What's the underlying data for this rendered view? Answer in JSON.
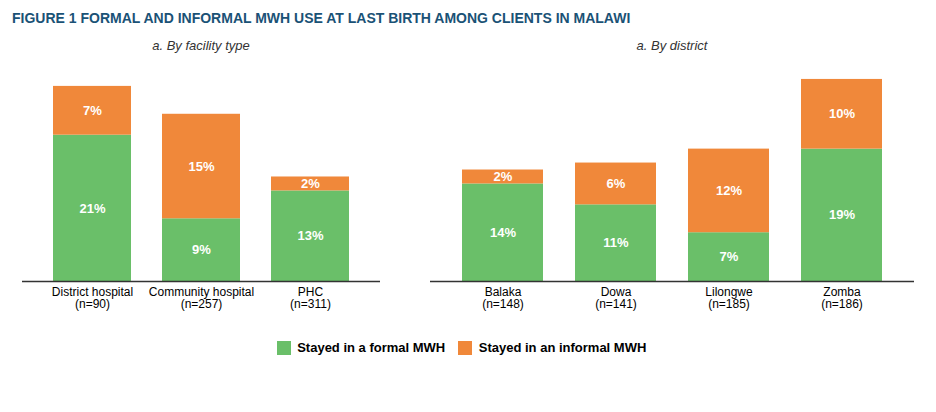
{
  "chart_data": [
    {
      "type": "bar",
      "stacked": true,
      "title": "FIGURE 1  FORMAL AND INFORMAL MWH USE AT LAST BIRTH AMONG CLIENTS IN MALAWI",
      "subtitle": "a. By facility type",
      "categories": [
        "District hospital\n(n=90)",
        "Community hospital\n(n=257)",
        "PHC\n(n=311)"
      ],
      "series": [
        {
          "name": "Stayed in a formal MWH",
          "color": "#6abf69",
          "values": [
            21,
            9,
            13
          ],
          "value_labels": [
            "21%",
            "9%",
            "13%"
          ]
        },
        {
          "name": "Stayed in an informal MWH",
          "color": "#f0883a",
          "values": [
            7,
            15,
            2
          ],
          "value_labels": [
            "7%",
            "15%",
            "2%"
          ]
        }
      ],
      "ylim": [
        0,
        31
      ],
      "tick_labels": "x",
      "data_labels": true,
      "grid": false,
      "legend": "bottom"
    },
    {
      "type": "bar",
      "stacked": true,
      "subtitle": "a. By district",
      "categories": [
        "Balaka\n(n=148)",
        "Dowa\n(n=141)",
        "Lilongwe\n(n=185)",
        "Zomba\n(n=186)"
      ],
      "series": [
        {
          "name": "Stayed in a formal MWH",
          "color": "#6abf69",
          "values": [
            14,
            11,
            7,
            19
          ],
          "value_labels": [
            "14%",
            "11%",
            "7%",
            "19%"
          ]
        },
        {
          "name": "Stayed in an informal MWH",
          "color": "#f0883a",
          "values": [
            2,
            6,
            12,
            10
          ],
          "value_labels": [
            "2%",
            "6%",
            "12%",
            "10%"
          ]
        }
      ],
      "ylim": [
        0,
        31
      ],
      "tick_labels": "x",
      "data_labels": true,
      "grid": false,
      "legend": "bottom"
    }
  ]
}
